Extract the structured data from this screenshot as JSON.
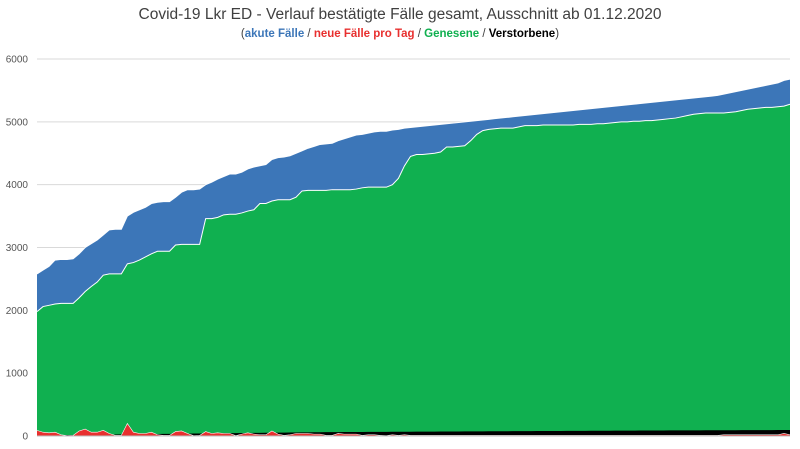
{
  "chart_data": {
    "type": "area",
    "title": "Covid-19 Lkr ED - Verlauf bestätigte Fälle gesamt, Ausschnitt ab 01.12.2020",
    "subtitle_parts": [
      "akute Fälle",
      "neue Fälle pro Tag",
      "Genesene",
      "Verstorbene"
    ],
    "subtitle_separator": " / ",
    "xlabel": "",
    "ylabel": "",
    "ylim": [
      0,
      6000
    ],
    "yticks": [
      "0",
      "1000",
      "2000",
      "3000",
      "4000",
      "5000",
      "6000"
    ],
    "grid": true,
    "colors": {
      "akute": "#3c76b8",
      "neue": "#e8302f",
      "genesene": "#10b050",
      "verstorbene": "#000000"
    },
    "series": [
      {
        "name": "bestätigte Fälle gesamt",
        "values": [
          2580,
          2640,
          2700,
          2800,
          2810,
          2810,
          2820,
          2900,
          3000,
          3060,
          3120,
          3200,
          3280,
          3290,
          3290,
          3500,
          3560,
          3600,
          3640,
          3700,
          3720,
          3730,
          3730,
          3800,
          3880,
          3920,
          3920,
          3930,
          4000,
          4040,
          4090,
          4130,
          4170,
          4170,
          4200,
          4250,
          4280,
          4300,
          4320,
          4400,
          4430,
          4440,
          4460,
          4500,
          4540,
          4580,
          4610,
          4640,
          4650,
          4660,
          4700,
          4730,
          4760,
          4790,
          4800,
          4820,
          4840,
          4850,
          4850,
          4870,
          4880,
          4900,
          4910,
          4920,
          4930,
          4940,
          4950,
          4960,
          4970,
          4980,
          4990,
          5000,
          5010,
          5020,
          5030,
          5040,
          5050,
          5060,
          5070,
          5080,
          5090,
          5100,
          5110,
          5120,
          5130,
          5140,
          5150,
          5160,
          5170,
          5180,
          5190,
          5200,
          5210,
          5220,
          5230,
          5240,
          5250,
          5260,
          5270,
          5280,
          5290,
          5300,
          5310,
          5320,
          5330,
          5340,
          5350,
          5360,
          5370,
          5380,
          5390,
          5400,
          5410,
          5420,
          5440,
          5460,
          5480,
          5500,
          5520,
          5540,
          5560,
          5580,
          5600,
          5620,
          5660,
          5680
        ]
      },
      {
        "name": "Genesene",
        "values": [
          1980,
          2060,
          2080,
          2100,
          2110,
          2110,
          2110,
          2200,
          2300,
          2380,
          2450,
          2560,
          2580,
          2580,
          2580,
          2740,
          2760,
          2800,
          2850,
          2900,
          2940,
          2940,
          2940,
          3040,
          3050,
          3050,
          3050,
          3050,
          3460,
          3460,
          3480,
          3520,
          3530,
          3530,
          3550,
          3580,
          3600,
          3700,
          3700,
          3740,
          3760,
          3760,
          3760,
          3800,
          3900,
          3910,
          3910,
          3910,
          3910,
          3920,
          3920,
          3920,
          3920,
          3930,
          3950,
          3960,
          3960,
          3960,
          3960,
          4000,
          4100,
          4300,
          4450,
          4480,
          4480,
          4490,
          4500,
          4520,
          4600,
          4600,
          4610,
          4620,
          4700,
          4800,
          4860,
          4880,
          4890,
          4900,
          4900,
          4900,
          4920,
          4940,
          4940,
          4940,
          4950,
          4950,
          4950,
          4950,
          4950,
          4950,
          4960,
          4960,
          4960,
          4970,
          4970,
          4980,
          4990,
          5000,
          5000,
          5010,
          5010,
          5020,
          5020,
          5030,
          5040,
          5050,
          5060,
          5080,
          5100,
          5120,
          5130,
          5140,
          5140,
          5140,
          5140,
          5150,
          5160,
          5180,
          5200,
          5210,
          5220,
          5230,
          5230,
          5240,
          5250,
          5280
        ]
      },
      {
        "name": "Verstorbene",
        "values": [
          10,
          11,
          12,
          13,
          14,
          15,
          16,
          17,
          18,
          20,
          21,
          22,
          23,
          24,
          25,
          27,
          28,
          29,
          30,
          31,
          32,
          33,
          34,
          35,
          36,
          38,
          39,
          40,
          41,
          42,
          43,
          44,
          45,
          46,
          47,
          48,
          49,
          50,
          51,
          52,
          53,
          54,
          55,
          56,
          57,
          58,
          59,
          60,
          61,
          62,
          62,
          63,
          63,
          64,
          64,
          65,
          65,
          66,
          66,
          67,
          67,
          68,
          68,
          69,
          69,
          70,
          70,
          71,
          71,
          72,
          72,
          73,
          73,
          74,
          74,
          75,
          75,
          76,
          76,
          77,
          77,
          78,
          78,
          79,
          79,
          80,
          80,
          80,
          81,
          81,
          82,
          82,
          83,
          83,
          84,
          84,
          85,
          85,
          86,
          86,
          87,
          87,
          88,
          88,
          88,
          89,
          89,
          89,
          90,
          90,
          90,
          91,
          91,
          91,
          92,
          92,
          92,
          93,
          93,
          93,
          94,
          94,
          94,
          95,
          95,
          96
        ]
      },
      {
        "name": "neue Fälle pro Tag",
        "values": [
          90,
          60,
          50,
          60,
          20,
          5,
          10,
          80,
          110,
          60,
          60,
          90,
          40,
          10,
          10,
          200,
          60,
          40,
          40,
          60,
          20,
          10,
          10,
          70,
          80,
          40,
          5,
          10,
          70,
          40,
          50,
          40,
          40,
          5,
          30,
          50,
          30,
          20,
          20,
          80,
          30,
          10,
          20,
          40,
          40,
          40,
          30,
          30,
          10,
          10,
          40,
          30,
          30,
          30,
          10,
          20,
          20,
          10,
          5,
          20,
          10,
          20,
          10,
          10,
          10,
          10,
          10,
          10,
          10,
          10,
          10,
          10,
          10,
          10,
          10,
          10,
          10,
          10,
          10,
          10,
          10,
          10,
          10,
          10,
          10,
          10,
          10,
          10,
          10,
          10,
          10,
          10,
          10,
          10,
          10,
          10,
          10,
          10,
          10,
          10,
          10,
          10,
          10,
          10,
          10,
          10,
          10,
          10,
          10,
          10,
          10,
          10,
          10,
          10,
          20,
          20,
          20,
          20,
          20,
          20,
          20,
          20,
          20,
          20,
          40,
          20
        ]
      }
    ]
  }
}
